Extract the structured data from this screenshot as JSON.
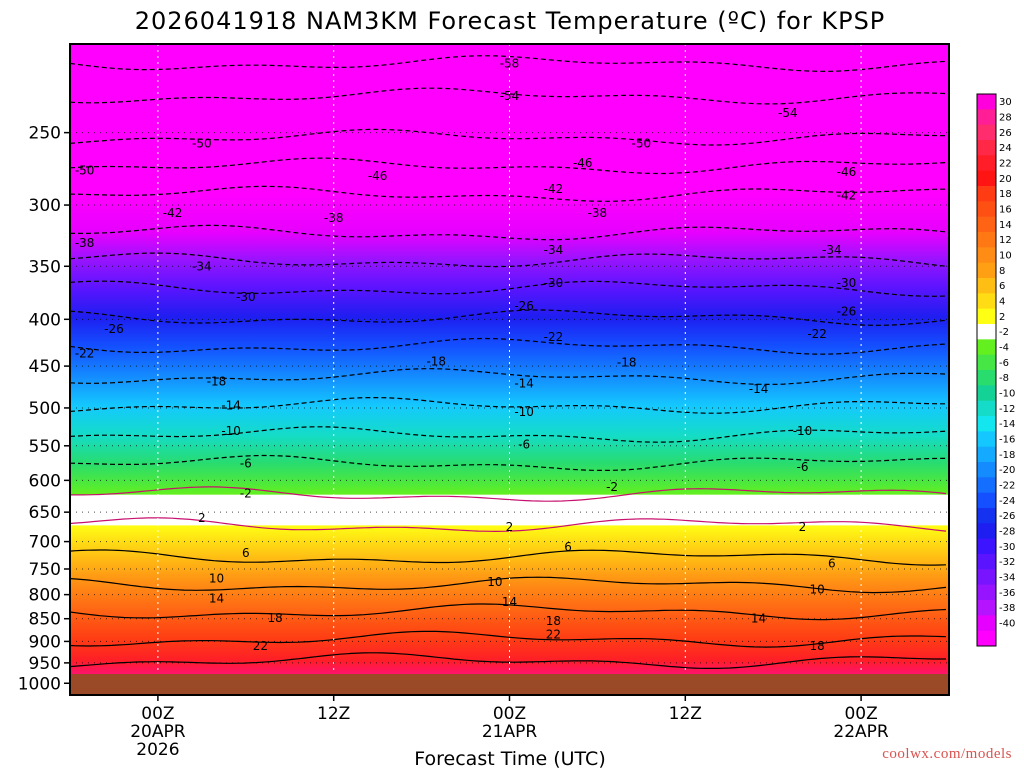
{
  "chart_data": {
    "type": "heatmap",
    "title": "2026041918 NAM3KM Forecast Temperature (ºC) for KPSP",
    "xlabel": "Forecast Time (UTC)",
    "ylabel": "",
    "credit": "coolwx.com/models",
    "x_range_hours": [
      -6,
      54
    ],
    "x_ticks": [
      {
        "hour": 0,
        "lines": [
          "00Z",
          "20APR",
          "2026"
        ]
      },
      {
        "hour": 12,
        "lines": [
          "12Z"
        ]
      },
      {
        "hour": 24,
        "lines": [
          "00Z",
          "21APR"
        ]
      },
      {
        "hour": 36,
        "lines": [
          "12Z"
        ]
      },
      {
        "hour": 48,
        "lines": [
          "00Z",
          "22APR"
        ]
      }
    ],
    "y_axis": {
      "type": "log-pressure",
      "top_hpa": 200,
      "bottom_hpa": 1030,
      "units": "hPa"
    },
    "y_ticks": [
      250,
      300,
      350,
      400,
      450,
      500,
      550,
      600,
      650,
      700,
      750,
      800,
      850,
      900,
      950,
      1000
    ],
    "colorbar": {
      "labels": [
        "30",
        "28",
        "26",
        "24",
        "22",
        "20",
        "18",
        "16",
        "14",
        "12",
        "10",
        "8",
        "6",
        "4",
        "2",
        "-2",
        "-4",
        "-6",
        "-8",
        "-10",
        "-12",
        "-14",
        "-16",
        "-18",
        "-20",
        "-22",
        "-24",
        "-26",
        "-28",
        "-30",
        "-32",
        "-34",
        "-36",
        "-38",
        "-40"
      ],
      "colors": [
        "#ff00dc",
        "#ff1e96",
        "#ff2d6e",
        "#ff2846",
        "#ff1e28",
        "#ff1414",
        "#ff3c14",
        "#ff5014",
        "#ff6414",
        "#ff7814",
        "#ff8c14",
        "#ffa014",
        "#ffbe14",
        "#ffdc14",
        "#ffff14",
        "#ffffff",
        "#64f01e",
        "#46e646",
        "#28dc6e",
        "#14d296",
        "#14dcc8",
        "#14e6f0",
        "#14c8ff",
        "#14aaff",
        "#148cff",
        "#146eff",
        "#1450ff",
        "#1432f0",
        "#1e1ef0",
        "#3c14ff",
        "#5a14ff",
        "#7814ff",
        "#9614ff",
        "#b414ff",
        "#e600ff",
        "#ff00ff"
      ]
    },
    "isotherms_levels": [
      {
        "temp": -58,
        "hpa": 210
      },
      {
        "temp": -54,
        "hpa": 228
      },
      {
        "temp": -50,
        "hpa": 253
      },
      {
        "temp": -46,
        "hpa": 272
      },
      {
        "temp": -42,
        "hpa": 292
      },
      {
        "temp": -38,
        "hpa": 322
      },
      {
        "temp": -34,
        "hpa": 345
      },
      {
        "temp": -30,
        "hpa": 370
      },
      {
        "temp": -26,
        "hpa": 398
      },
      {
        "temp": -22,
        "hpa": 428
      },
      {
        "temp": -18,
        "hpa": 462
      },
      {
        "temp": -14,
        "hpa": 497
      },
      {
        "temp": -10,
        "hpa": 535
      },
      {
        "temp": -6,
        "hpa": 575
      },
      {
        "temp": -2,
        "hpa": 622
      },
      {
        "temp": 2,
        "hpa": 672
      },
      {
        "temp": 6,
        "hpa": 728
      },
      {
        "temp": 10,
        "hpa": 780
      },
      {
        "temp": 14,
        "hpa": 835
      },
      {
        "temp": 18,
        "hpa": 895
      },
      {
        "temp": 22,
        "hpa": 945
      }
    ],
    "contour_labels": [
      {
        "text": "-58",
        "hour": 24,
        "hpa": 210
      },
      {
        "text": "-54",
        "hour": 24,
        "hpa": 228
      },
      {
        "text": "-54",
        "hour": 43,
        "hpa": 238
      },
      {
        "text": "-50",
        "hour": 3,
        "hpa": 257
      },
      {
        "text": "-50",
        "hour": 33,
        "hpa": 257
      },
      {
        "text": "-50",
        "hour": -5,
        "hpa": 275
      },
      {
        "text": "-46",
        "hour": 15,
        "hpa": 279
      },
      {
        "text": "-46",
        "hour": 29,
        "hpa": 270
      },
      {
        "text": "-46",
        "hour": 47,
        "hpa": 276
      },
      {
        "text": "-42",
        "hour": 1,
        "hpa": 306
      },
      {
        "text": "-42",
        "hour": 27,
        "hpa": 288
      },
      {
        "text": "-42",
        "hour": 47,
        "hpa": 293
      },
      {
        "text": "-38",
        "hour": 12,
        "hpa": 310
      },
      {
        "text": "-38",
        "hour": 30,
        "hpa": 306
      },
      {
        "text": "-38",
        "hour": -5,
        "hpa": 330
      },
      {
        "text": "-34",
        "hour": 3,
        "hpa": 350
      },
      {
        "text": "-34",
        "hour": 27,
        "hpa": 336
      },
      {
        "text": "-34",
        "hour": 46,
        "hpa": 336
      },
      {
        "text": "-30",
        "hour": 6,
        "hpa": 378
      },
      {
        "text": "-30",
        "hour": 27,
        "hpa": 365
      },
      {
        "text": "-30",
        "hour": 47,
        "hpa": 365
      },
      {
        "text": "-26",
        "hour": -3,
        "hpa": 410
      },
      {
        "text": "-26",
        "hour": 25,
        "hpa": 387
      },
      {
        "text": "-26",
        "hour": 47,
        "hpa": 392
      },
      {
        "text": "-22",
        "hour": -5,
        "hpa": 436
      },
      {
        "text": "-22",
        "hour": 27,
        "hpa": 418
      },
      {
        "text": "-22",
        "hour": 45,
        "hpa": 415
      },
      {
        "text": "-18",
        "hour": 19,
        "hpa": 445
      },
      {
        "text": "-18",
        "hour": 32,
        "hpa": 446
      },
      {
        "text": "-18",
        "hour": 4,
        "hpa": 468
      },
      {
        "text": "-14",
        "hour": 25,
        "hpa": 470
      },
      {
        "text": "-14",
        "hour": 41,
        "hpa": 477
      },
      {
        "text": "-14",
        "hour": 5,
        "hpa": 497
      },
      {
        "text": "-10",
        "hour": 25,
        "hpa": 505
      },
      {
        "text": "-10",
        "hour": 5,
        "hpa": 530
      },
      {
        "text": "-10",
        "hour": 44,
        "hpa": 530
      },
      {
        "text": "-6",
        "hour": 25,
        "hpa": 548
      },
      {
        "text": "-6",
        "hour": 6,
        "hpa": 575
      },
      {
        "text": "-6",
        "hour": 44,
        "hpa": 580
      },
      {
        "text": "-2",
        "hour": 6,
        "hpa": 620
      },
      {
        "text": "-2",
        "hour": 31,
        "hpa": 610
      },
      {
        "text": "2",
        "hour": 3,
        "hpa": 660
      },
      {
        "text": "2",
        "hour": 24,
        "hpa": 675
      },
      {
        "text": "2",
        "hour": 44,
        "hpa": 675
      },
      {
        "text": "6",
        "hour": 6,
        "hpa": 720
      },
      {
        "text": "6",
        "hour": 28,
        "hpa": 710
      },
      {
        "text": "6",
        "hour": 46,
        "hpa": 740
      },
      {
        "text": "10",
        "hour": 4,
        "hpa": 768
      },
      {
        "text": "10",
        "hour": 23,
        "hpa": 775
      },
      {
        "text": "10",
        "hour": 45,
        "hpa": 790
      },
      {
        "text": "14",
        "hour": 4,
        "hpa": 808
      },
      {
        "text": "14",
        "hour": 24,
        "hpa": 815
      },
      {
        "text": "14",
        "hour": 41,
        "hpa": 850
      },
      {
        "text": "18",
        "hour": 8,
        "hpa": 848
      },
      {
        "text": "18",
        "hour": 27,
        "hpa": 855
      },
      {
        "text": "18",
        "hour": 45,
        "hpa": 910
      },
      {
        "text": "22",
        "hour": 7,
        "hpa": 910
      },
      {
        "text": "22",
        "hour": 27,
        "hpa": 885
      }
    ],
    "surface_color": "#9b4a28"
  }
}
